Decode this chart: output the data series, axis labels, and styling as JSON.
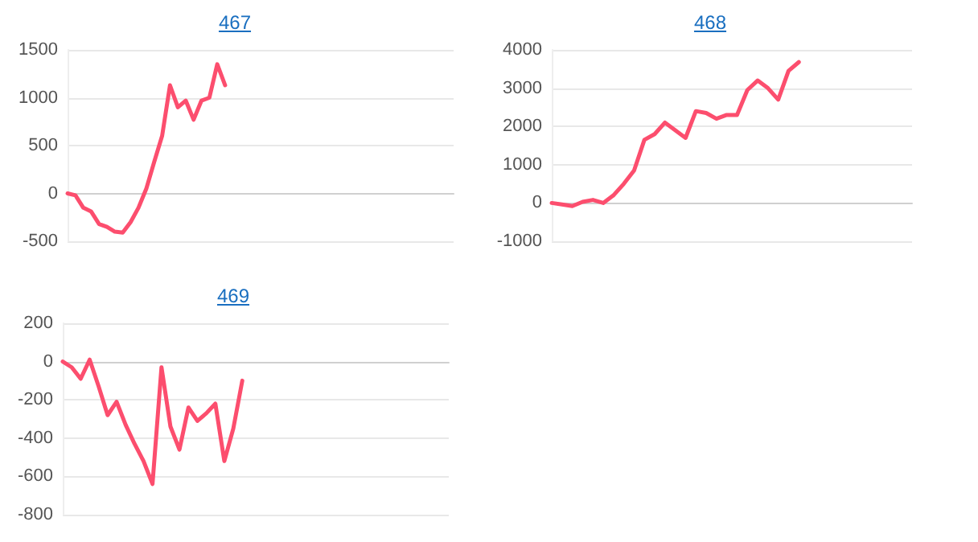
{
  "chart_data": [
    {
      "type": "line",
      "title": "467",
      "categories": [
        null,
        null,
        null,
        null,
        null,
        null,
        null,
        null,
        null,
        null,
        null,
        null,
        null,
        null,
        null,
        null,
        null,
        null,
        null,
        null,
        null,
        null,
        null,
        null,
        null,
        null,
        null,
        null,
        null,
        null,
        null,
        null,
        null,
        null,
        null,
        null,
        null,
        null,
        null,
        null,
        null,
        null,
        null,
        null,
        null,
        null,
        null,
        null,
        null,
        null
      ],
      "series": [
        {
          "color": "#fc4e6e",
          "values": [
            0,
            -20,
            -150,
            -190,
            -320,
            -350,
            -400,
            -410,
            -300,
            -150,
            50,
            330,
            600,
            1130,
            900,
            970,
            770,
            970,
            1000,
            1350,
            1130,
            null,
            null,
            null,
            null,
            null,
            null,
            null,
            null,
            null,
            null,
            null,
            null,
            null,
            null,
            null,
            null,
            null,
            null,
            null,
            null,
            null,
            null,
            null,
            null,
            null,
            null,
            null,
            null,
            null
          ]
        }
      ],
      "ylim": [
        -500,
        1500
      ],
      "yticks": [
        -500,
        0,
        500,
        1000,
        1500
      ],
      "grid": "y",
      "tick_labels": "y",
      "line_style": "solid"
    },
    {
      "type": "line",
      "title": "468",
      "categories": [
        null,
        null,
        null,
        null,
        null,
        null,
        null,
        null,
        null,
        null,
        null,
        null,
        null,
        null,
        null,
        null,
        null,
        null,
        null,
        null,
        null,
        null,
        null,
        null,
        null,
        null,
        null,
        null,
        null,
        null,
        null,
        null,
        null,
        null,
        null,
        null
      ],
      "series": [
        {
          "color": "#fc4e6e",
          "values": [
            0,
            -40,
            -80,
            30,
            80,
            0,
            200,
            500,
            850,
            1650,
            1800,
            2100,
            1900,
            1700,
            2400,
            2350,
            2200,
            2300,
            2300,
            2950,
            3200,
            3000,
            2700,
            3450,
            3680,
            null,
            null,
            null,
            null,
            null,
            null,
            null,
            null,
            null,
            null,
            null
          ]
        }
      ],
      "ylim": [
        -1000,
        4000
      ],
      "yticks": [
        -1000,
        0,
        1000,
        2000,
        3000,
        4000
      ],
      "grid": "y",
      "tick_labels": "y",
      "line_style": "solid"
    },
    {
      "type": "line",
      "title": "469",
      "categories": [
        null,
        null,
        null,
        null,
        null,
        null,
        null,
        null,
        null,
        null,
        null,
        null,
        null,
        null,
        null,
        null,
        null,
        null,
        null,
        null,
        null,
        null,
        null,
        null,
        null,
        null,
        null,
        null,
        null,
        null,
        null,
        null,
        null,
        null,
        null,
        null,
        null,
        null,
        null,
        null,
        null,
        null,
        null,
        null
      ],
      "series": [
        {
          "color": "#fc4e6e",
          "values": [
            0,
            -30,
            -90,
            10,
            -130,
            -280,
            -210,
            -330,
            -430,
            -520,
            -640,
            -30,
            -340,
            -460,
            -240,
            -310,
            -270,
            -220,
            -520,
            -350,
            -100,
            null,
            null,
            null,
            null,
            null,
            null,
            null,
            null,
            null,
            null,
            null,
            null,
            null,
            null,
            null,
            null,
            null,
            null,
            null,
            null,
            null,
            null,
            null
          ]
        }
      ],
      "ylim": [
        -800,
        200
      ],
      "yticks": [
        -800,
        -600,
        -400,
        -200,
        0,
        200
      ],
      "grid": "y",
      "tick_labels": "y",
      "line_style": "solid"
    }
  ]
}
